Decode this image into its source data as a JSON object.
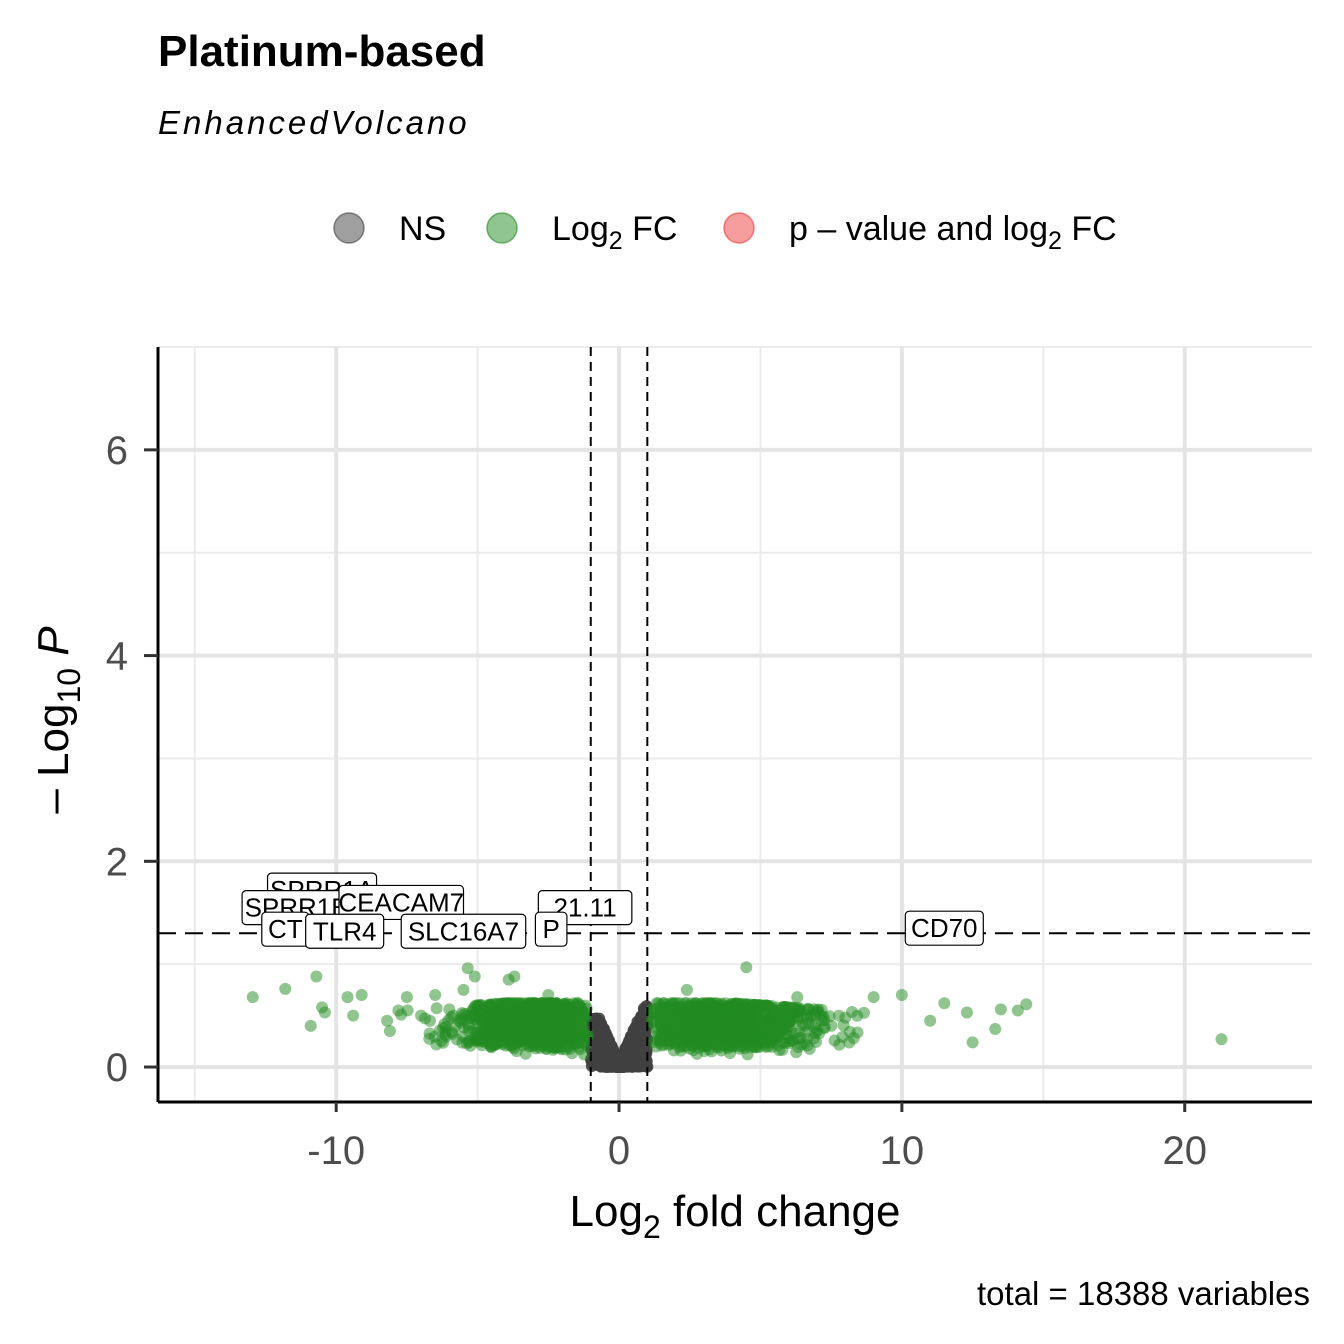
{
  "title": "Platinum-based",
  "subtitle": "EnhancedVolcano",
  "caption": "total = 18388 variables",
  "legend": [
    {
      "label": "NS",
      "color": "#404040"
    },
    {
      "label": "Log",
      "sub": "2",
      "after": " FC",
      "color": "#228b22"
    },
    {
      "label": "p – value and log",
      "sub": "2",
      "after": " FC",
      "color": "#ee3b3b"
    }
  ],
  "chart_data": {
    "type": "scatter",
    "title": "Platinum-based",
    "subtitle": "EnhancedVolcano",
    "xlabel": {
      "base": "Log",
      "sub": "2",
      "after": " fold change"
    },
    "ylabel": {
      "prefix": "– Log",
      "sub": "10",
      "italic": "P"
    },
    "xlim": [
      -16.3,
      24.5
    ],
    "ylim": [
      -0.34,
      7.0
    ],
    "x_ticks": [
      -10,
      0,
      10,
      20
    ],
    "x_tick_labels": [
      "-10",
      "0",
      "10",
      "20"
    ],
    "y_ticks": [
      0,
      2,
      4,
      6
    ],
    "y_tick_labels": [
      "0",
      "2",
      "4",
      "6"
    ],
    "grid": true,
    "fc_cutoff": [
      -1,
      1
    ],
    "p_cutoff_log10": 1.3,
    "legend_position": "top",
    "series": [
      {
        "name": "NS",
        "color": "#404040",
        "description": "dense points with |log2FC| < 1, -log10P from 0 to 0.6"
      },
      {
        "name": "Log2 FC",
        "color": "#228b22",
        "points": [
          [
            -12.95,
            0.68
          ],
          [
            -11.8,
            0.76
          ],
          [
            -10.7,
            0.88
          ],
          [
            -10.9,
            0.4
          ],
          [
            -10.5,
            0.58
          ],
          [
            -10.4,
            0.53
          ],
          [
            -9.6,
            0.68
          ],
          [
            -9.1,
            0.7
          ],
          [
            -9.4,
            0.5
          ],
          [
            -8.2,
            0.45
          ],
          [
            -8.1,
            0.35
          ],
          [
            -7.8,
            0.55
          ],
          [
            -7.5,
            0.68
          ],
          [
            -7.0,
            0.5
          ],
          [
            -6.5,
            0.7
          ],
          [
            -6.0,
            0.56
          ],
          [
            -5.5,
            0.75
          ],
          [
            -5.35,
            0.96
          ],
          [
            -5.1,
            0.88
          ],
          [
            -4.5,
            0.44
          ],
          [
            -3.9,
            0.85
          ],
          [
            -3.7,
            0.88
          ],
          [
            -3.0,
            0.55
          ],
          [
            -2.5,
            0.7
          ],
          [
            -2.0,
            0.4
          ],
          [
            1.5,
            0.5
          ],
          [
            2.4,
            0.75
          ],
          [
            3.0,
            0.4
          ],
          [
            4.5,
            0.97
          ],
          [
            5.2,
            0.6
          ],
          [
            6.3,
            0.68
          ],
          [
            7.0,
            0.55
          ],
          [
            8.0,
            0.48
          ],
          [
            9.0,
            0.68
          ],
          [
            10.0,
            0.7
          ],
          [
            11.0,
            0.45
          ],
          [
            11.5,
            0.62
          ],
          [
            12.3,
            0.53
          ],
          [
            12.5,
            0.24
          ],
          [
            13.3,
            0.37
          ],
          [
            13.5,
            0.56
          ],
          [
            14.1,
            0.55
          ],
          [
            14.4,
            0.61
          ],
          [
            21.3,
            0.27
          ]
        ]
      },
      {
        "name": "p-value and log2 FC",
        "color": "#ee3b3b",
        "points": []
      }
    ],
    "labels": [
      {
        "text": "SPRR1A",
        "x": -10.5,
        "y": 1.72
      },
      {
        "text": "SPRR1B",
        "x": -11.4,
        "y": 1.55
      },
      {
        "text": "CEACAM7",
        "x": -7.7,
        "y": 1.6
      },
      {
        "text": "21.11",
        "x": -1.2,
        "y": 1.55
      },
      {
        "text": "CT",
        "x": -11.8,
        "y": 1.34
      },
      {
        "text": "TLR4",
        "x": -9.7,
        "y": 1.32
      },
      {
        "text": "SLC16A7",
        "x": -5.5,
        "y": 1.32
      },
      {
        "text": "P",
        "x": -2.4,
        "y": 1.34
      },
      {
        "text": "CD70",
        "x": 11.5,
        "y": 1.35
      }
    ]
  }
}
